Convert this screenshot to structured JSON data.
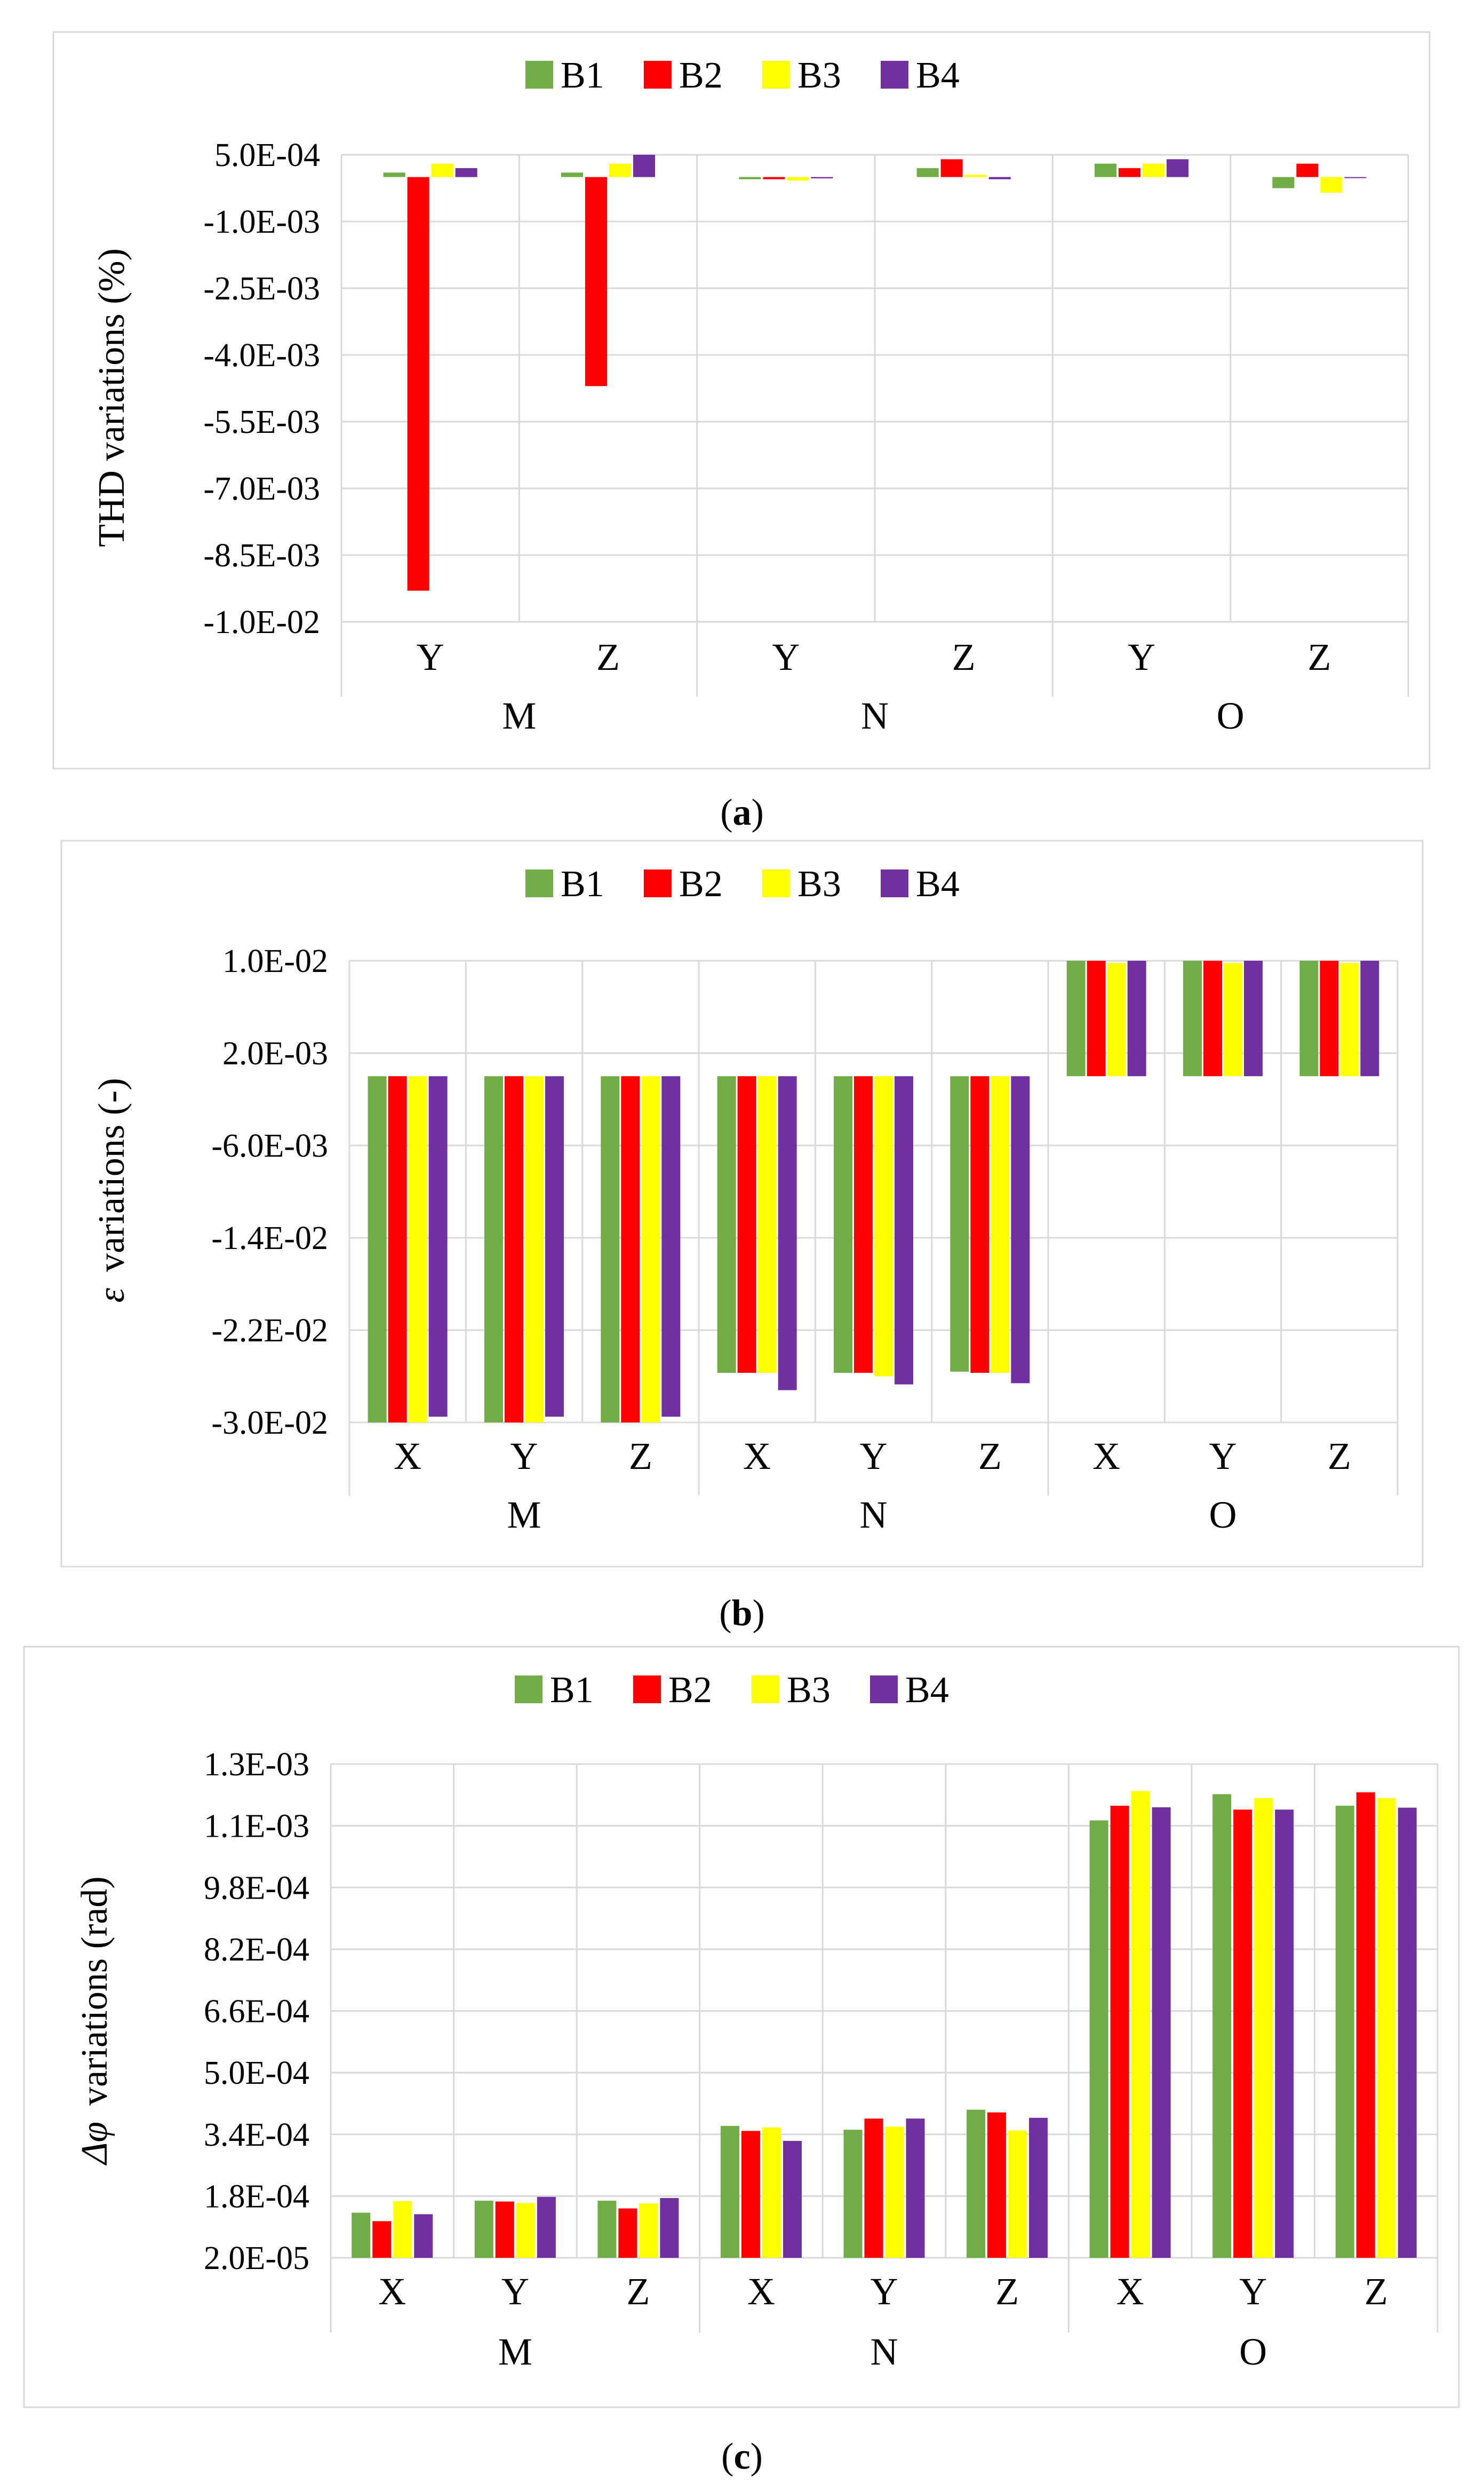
{
  "chart_data": [
    {
      "type": "bar",
      "caption_letter": "a",
      "legend_position": "top",
      "ylabel": "THD  variations (%)",
      "y_ticks": [
        "5.0E-04",
        "-1.0E-03",
        "-2.5E-03",
        "-4.0E-03",
        "-5.5E-03",
        "-7.0E-03",
        "-8.5E-03",
        "-1.0E-02"
      ],
      "ylim": [
        -0.01,
        0.0005
      ],
      "groups": [
        "M",
        "N",
        "O"
      ],
      "categories": [
        "Y",
        "Z",
        "Y",
        "Z",
        "Y",
        "Z"
      ],
      "series": [
        {
          "name": "B1",
          "color": "#70ad47",
          "values": [
            0.0001,
            0.0001,
            -5e-05,
            0.0002,
            0.0003,
            -0.00025
          ]
        },
        {
          "name": "B2",
          "color": "#ff0000",
          "values": [
            -0.0093,
            -0.0047,
            -5e-05,
            0.0004,
            0.0002,
            0.0003
          ]
        },
        {
          "name": "B3",
          "color": "#ffff00",
          "values": [
            0.0003,
            0.0003,
            -8e-05,
            5e-05,
            0.0003,
            -0.00035
          ]
        },
        {
          "name": "B4",
          "color": "#7030a0",
          "values": [
            0.0002,
            0.0005,
            -3e-05,
            -5e-05,
            0.0004,
            -2e-05
          ]
        }
      ]
    },
    {
      "type": "bar",
      "caption_letter": "b",
      "legend_position": "top",
      "ylabel_symbol": "ε",
      "ylabel": "variations (-)",
      "y_ticks": [
        "1.0E-02",
        "2.0E-03",
        "-6.0E-03",
        "-1.4E-02",
        "-2.2E-02",
        "-3.0E-02"
      ],
      "ylim": [
        -0.03,
        0.01
      ],
      "groups": [
        "M",
        "N",
        "O"
      ],
      "categories": [
        "X",
        "Y",
        "Z",
        "X",
        "Y",
        "Z",
        "X",
        "Y",
        "Z"
      ],
      "series": [
        {
          "name": "B1",
          "color": "#70ad47",
          "values": [
            -0.03,
            -0.03,
            -0.03,
            -0.0257,
            -0.0257,
            -0.0256,
            0.01,
            0.01,
            0.01
          ]
        },
        {
          "name": "B2",
          "color": "#ff0000",
          "values": [
            -0.03,
            -0.03,
            -0.03,
            -0.0257,
            -0.0257,
            -0.0257,
            0.01,
            0.01,
            0.01
          ]
        },
        {
          "name": "B3",
          "color": "#ffff00",
          "values": [
            -0.03,
            -0.03,
            -0.03,
            -0.0257,
            -0.026,
            -0.0257,
            0.0098,
            0.0098,
            0.0098
          ]
        },
        {
          "name": "B4",
          "color": "#7030a0",
          "values": [
            -0.0295,
            -0.0295,
            -0.0295,
            -0.0272,
            -0.0267,
            -0.0266,
            0.01,
            0.01,
            0.01
          ]
        }
      ]
    },
    {
      "type": "bar",
      "caption_letter": "c",
      "legend_position": "top",
      "ylabel_symbol": "Δφ",
      "ylabel": "variations (rad)",
      "y_ticks": [
        "1.3E-03",
        "1.1E-03",
        "9.8E-04",
        "8.2E-04",
        "6.6E-04",
        "5.0E-04",
        "3.4E-04",
        "1.8E-04",
        "2.0E-05"
      ],
      "ylim": [
        2e-05,
        0.0013
      ],
      "groups": [
        "M",
        "N",
        "O"
      ],
      "categories": [
        "X",
        "Y",
        "Z",
        "X",
        "Y",
        "Z",
        "X",
        "Y",
        "Z"
      ],
      "series": [
        {
          "name": "B1",
          "color": "#70ad47",
          "values": [
            0.000137,
            0.000168,
            0.000168,
            0.000362,
            0.000352,
            0.000404,
            0.001154,
            0.001222,
            0.001192
          ]
        },
        {
          "name": "B2",
          "color": "#ff0000",
          "values": [
            0.000115,
            0.000166,
            0.000148,
            0.000349,
            0.000381,
            0.000397,
            0.001192,
            0.001182,
            0.001227
          ]
        },
        {
          "name": "B3",
          "color": "#ffff00",
          "values": [
            0.000167,
            0.000162,
            0.000161,
            0.000358,
            0.00036,
            0.00035,
            0.00123,
            0.001212,
            0.001212
          ]
        },
        {
          "name": "B4",
          "color": "#7030a0",
          "values": [
            0.000133,
            0.000178,
            0.000175,
            0.000323,
            0.000381,
            0.000383,
            0.001188,
            0.001182,
            0.001187
          ]
        }
      ]
    }
  ]
}
